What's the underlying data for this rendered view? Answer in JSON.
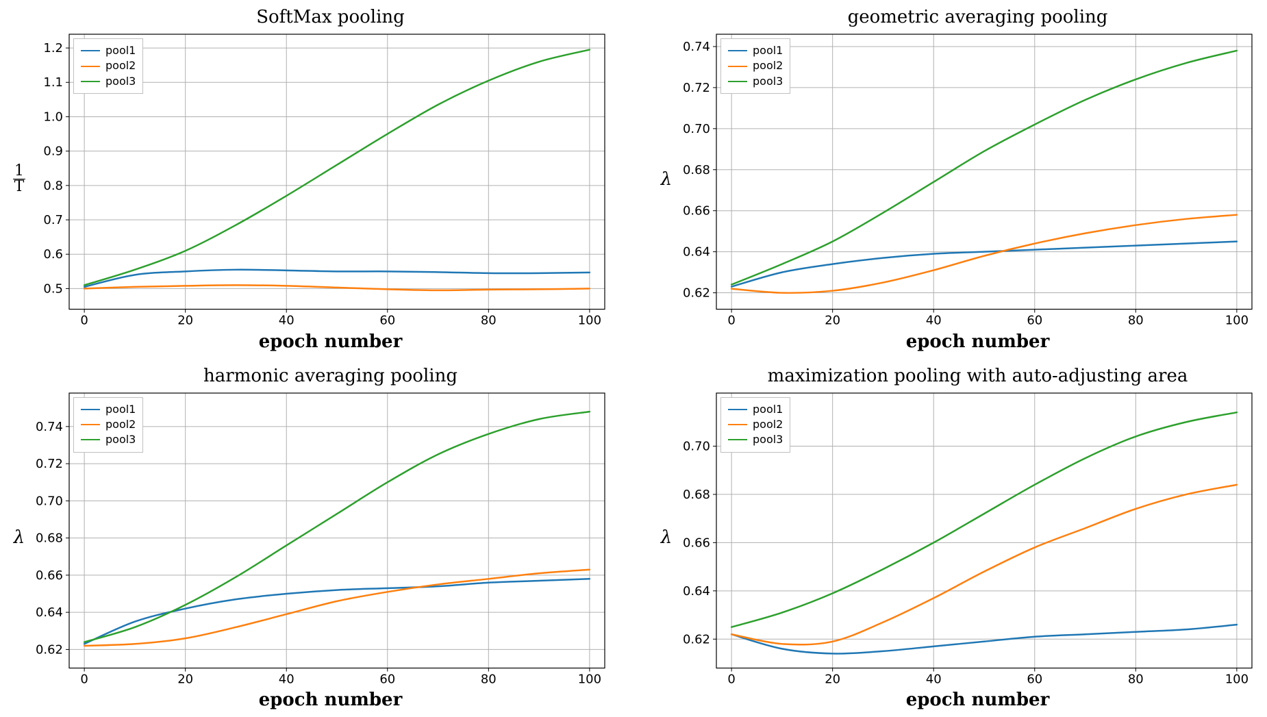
{
  "colors": {
    "pool1": "#1f77b4",
    "pool2": "#ff7f0e",
    "pool3": "#2ca02c",
    "grid": "#b0b0b0",
    "spine": "#000000",
    "tick": "#000000",
    "background": "#ffffff"
  },
  "line_width": 2.5,
  "tick_fontsize": 18,
  "legend_fontsize": 16,
  "title_fontsize": 26,
  "label_fontsize": 26,
  "xlabel_weight": 700,
  "legend_items": [
    "pool1",
    "pool2",
    "pool3"
  ],
  "charts": [
    {
      "id": "softmax",
      "type": "line",
      "title": "SoftMax pooling",
      "xlabel": "epoch number",
      "ylabel_type": "frac",
      "ylabel_num": "1",
      "ylabel_den": "T",
      "xlim": [
        -3,
        103
      ],
      "ylim": [
        0.44,
        1.24
      ],
      "xticks": [
        0,
        20,
        40,
        60,
        80,
        100
      ],
      "yticks": [
        0.5,
        0.6,
        0.7,
        0.8,
        0.9,
        1.0,
        1.1,
        1.2
      ],
      "ytick_labels": [
        "0.5",
        "0.6",
        "0.7",
        "0.8",
        "0.9",
        "1.0",
        "1.1",
        "1.2"
      ],
      "legend_pos": "top-left",
      "series": {
        "pool1": {
          "x": [
            0,
            10,
            20,
            30,
            40,
            50,
            60,
            70,
            80,
            90,
            100
          ],
          "y": [
            0.505,
            0.54,
            0.55,
            0.555,
            0.553,
            0.55,
            0.55,
            0.548,
            0.545,
            0.545,
            0.547
          ]
        },
        "pool2": {
          "x": [
            0,
            10,
            20,
            30,
            40,
            50,
            60,
            70,
            80,
            90,
            100
          ],
          "y": [
            0.5,
            0.505,
            0.508,
            0.51,
            0.508,
            0.503,
            0.498,
            0.495,
            0.497,
            0.498,
            0.5
          ]
        },
        "pool3": {
          "x": [
            0,
            10,
            20,
            30,
            40,
            50,
            60,
            70,
            80,
            90,
            100
          ],
          "y": [
            0.51,
            0.555,
            0.61,
            0.685,
            0.77,
            0.86,
            0.95,
            1.035,
            1.105,
            1.16,
            1.195
          ]
        }
      }
    },
    {
      "id": "geometric",
      "type": "line",
      "title": "geometric averaging pooling",
      "xlabel": "epoch number",
      "ylabel_type": "lambda",
      "xlim": [
        -3,
        103
      ],
      "ylim": [
        0.612,
        0.746
      ],
      "xticks": [
        0,
        20,
        40,
        60,
        80,
        100
      ],
      "yticks": [
        0.62,
        0.64,
        0.66,
        0.68,
        0.7,
        0.72,
        0.74
      ],
      "ytick_labels": [
        "0.62",
        "0.64",
        "0.66",
        "0.68",
        "0.70",
        "0.72",
        "0.74"
      ],
      "legend_pos": "top-left",
      "series": {
        "pool1": {
          "x": [
            0,
            10,
            20,
            30,
            40,
            50,
            60,
            70,
            80,
            90,
            100
          ],
          "y": [
            0.623,
            0.63,
            0.634,
            0.637,
            0.639,
            0.64,
            0.641,
            0.642,
            0.643,
            0.644,
            0.645
          ]
        },
        "pool2": {
          "x": [
            0,
            10,
            20,
            30,
            40,
            50,
            60,
            70,
            80,
            90,
            100
          ],
          "y": [
            0.622,
            0.62,
            0.621,
            0.625,
            0.631,
            0.638,
            0.644,
            0.649,
            0.653,
            0.656,
            0.658
          ]
        },
        "pool3": {
          "x": [
            0,
            10,
            20,
            30,
            40,
            50,
            60,
            70,
            80,
            90,
            100
          ],
          "y": [
            0.624,
            0.634,
            0.645,
            0.659,
            0.674,
            0.689,
            0.702,
            0.714,
            0.724,
            0.732,
            0.738
          ]
        }
      }
    },
    {
      "id": "harmonic",
      "type": "line",
      "title": "harmonic averaging pooling",
      "xlabel": "epoch number",
      "ylabel_type": "lambda",
      "xlim": [
        -3,
        103
      ],
      "ylim": [
        0.61,
        0.758
      ],
      "xticks": [
        0,
        20,
        40,
        60,
        80,
        100
      ],
      "yticks": [
        0.62,
        0.64,
        0.66,
        0.68,
        0.7,
        0.72,
        0.74
      ],
      "ytick_labels": [
        "0.62",
        "0.64",
        "0.66",
        "0.68",
        "0.70",
        "0.72",
        "0.74"
      ],
      "legend_pos": "top-left",
      "series": {
        "pool1": {
          "x": [
            0,
            10,
            20,
            30,
            40,
            50,
            60,
            70,
            80,
            90,
            100
          ],
          "y": [
            0.623,
            0.635,
            0.642,
            0.647,
            0.65,
            0.652,
            0.653,
            0.654,
            0.656,
            0.657,
            0.658
          ]
        },
        "pool2": {
          "x": [
            0,
            10,
            20,
            30,
            40,
            50,
            60,
            70,
            80,
            90,
            100
          ],
          "y": [
            0.622,
            0.623,
            0.626,
            0.632,
            0.639,
            0.646,
            0.651,
            0.655,
            0.658,
            0.661,
            0.663
          ]
        },
        "pool3": {
          "x": [
            0,
            10,
            20,
            30,
            40,
            50,
            60,
            70,
            80,
            90,
            100
          ],
          "y": [
            0.624,
            0.632,
            0.644,
            0.659,
            0.676,
            0.693,
            0.71,
            0.725,
            0.736,
            0.744,
            0.748
          ]
        }
      }
    },
    {
      "id": "maximization",
      "type": "line",
      "title": "maximization pooling with auto-adjusting area",
      "xlabel": "epoch number",
      "ylabel_type": "lambda",
      "xlim": [
        -3,
        103
      ],
      "ylim": [
        0.608,
        0.722
      ],
      "xticks": [
        0,
        20,
        40,
        60,
        80,
        100
      ],
      "yticks": [
        0.62,
        0.64,
        0.66,
        0.68,
        0.7
      ],
      "ytick_labels": [
        "0.62",
        "0.64",
        "0.66",
        "0.68",
        "0.70"
      ],
      "legend_pos": "top-left",
      "series": {
        "pool1": {
          "x": [
            0,
            10,
            20,
            30,
            40,
            50,
            60,
            70,
            80,
            90,
            100
          ],
          "y": [
            0.622,
            0.616,
            0.614,
            0.615,
            0.617,
            0.619,
            0.621,
            0.622,
            0.623,
            0.624,
            0.626
          ]
        },
        "pool2": {
          "x": [
            0,
            10,
            20,
            30,
            40,
            50,
            60,
            70,
            80,
            90,
            100
          ],
          "y": [
            0.622,
            0.618,
            0.619,
            0.627,
            0.637,
            0.648,
            0.658,
            0.666,
            0.674,
            0.68,
            0.684
          ]
        },
        "pool3": {
          "x": [
            0,
            10,
            20,
            30,
            40,
            50,
            60,
            70,
            80,
            90,
            100
          ],
          "y": [
            0.625,
            0.631,
            0.639,
            0.649,
            0.66,
            0.672,
            0.684,
            0.695,
            0.704,
            0.71,
            0.714
          ]
        }
      }
    }
  ]
}
